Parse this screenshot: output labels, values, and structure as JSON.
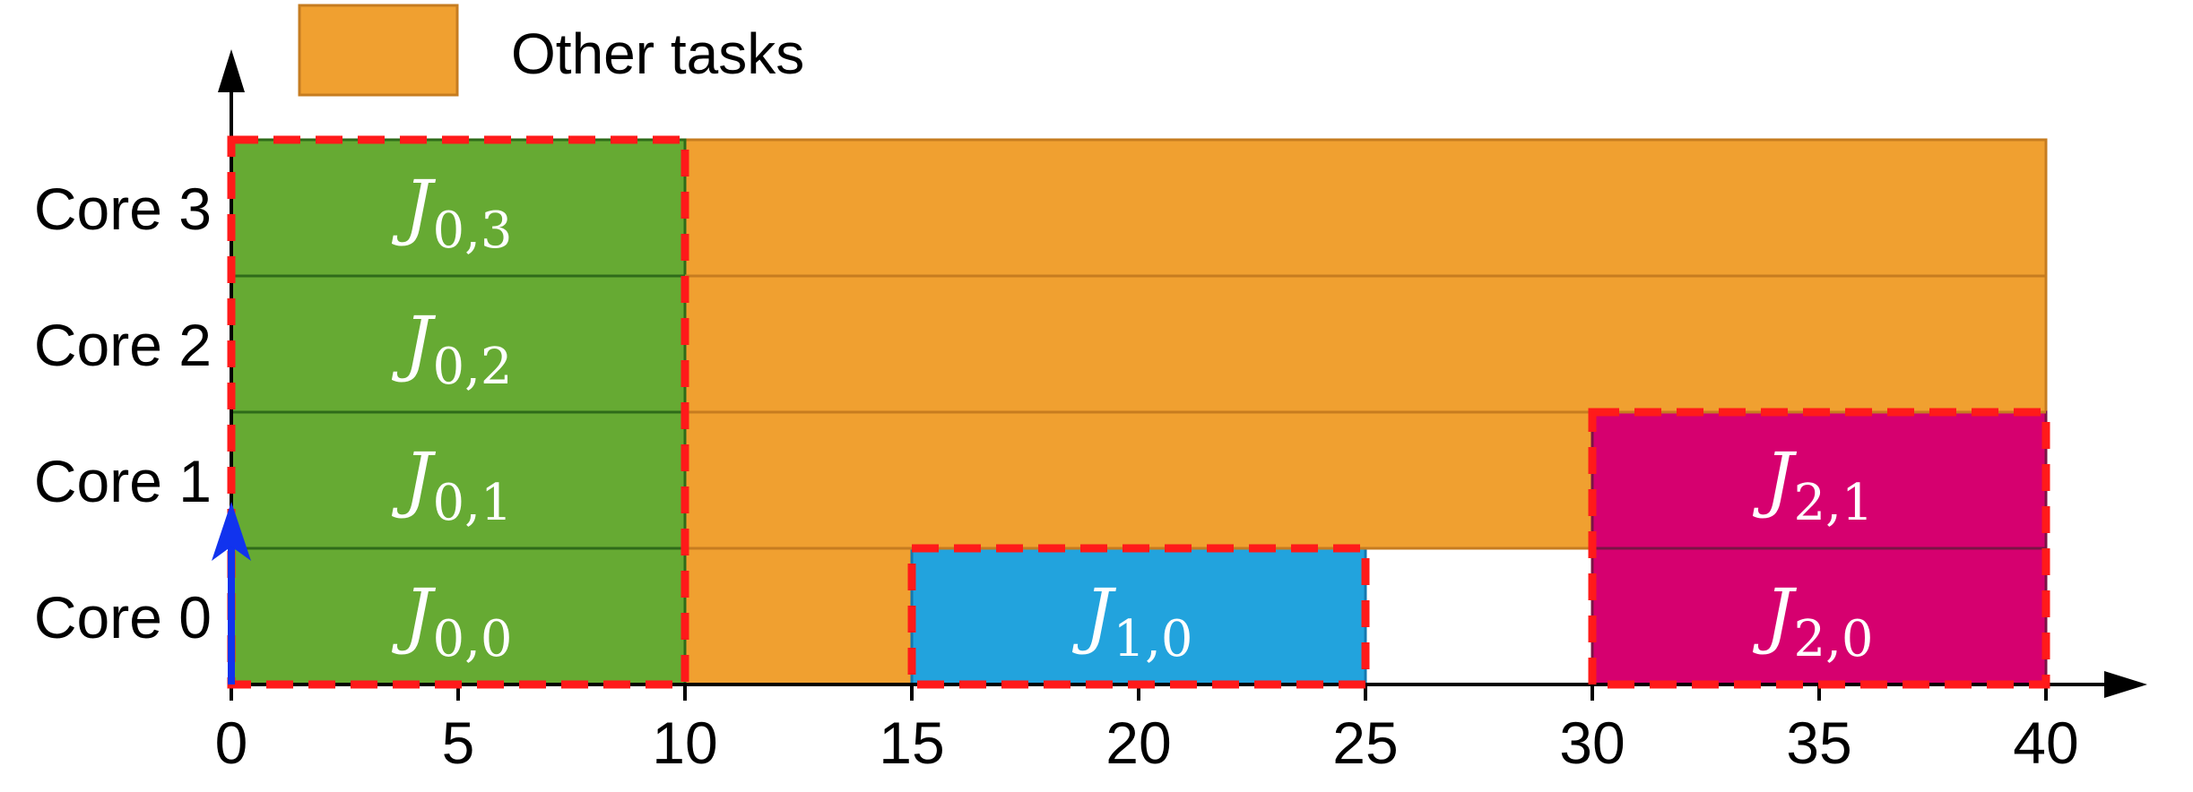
{
  "chart_data": {
    "type": "gantt",
    "x_ticks": [
      0,
      5,
      10,
      15,
      20,
      25,
      30,
      35,
      40
    ],
    "xlim": [
      0,
      43.5
    ],
    "cores": [
      "Core 0",
      "Core 1",
      "Core 2",
      "Core 3"
    ],
    "legend": [
      {
        "label": "Other tasks",
        "color": "#f0a030"
      }
    ],
    "colors": {
      "other": "#f0a030",
      "other_edge": "#c67c20",
      "job0": "#66aa33",
      "job0_edge": "#2f6b1a",
      "job1": "#22a3dd",
      "job1_edge": "#1478b0",
      "job2": "#d6006f",
      "job2_edge": "#7a1445",
      "dashed_outline": "#ff1a1a",
      "release_arrow": "#1133ee"
    },
    "other_tasks": [
      {
        "core": 3,
        "start": 10,
        "end": 40
      },
      {
        "core": 2,
        "start": 10,
        "end": 40
      },
      {
        "core": 1,
        "start": 10,
        "end": 30
      },
      {
        "core": 0,
        "start": 10,
        "end": 15
      }
    ],
    "jobs": [
      {
        "id": "job0",
        "start": 0,
        "end": 10,
        "cores": [
          {
            "core": 3,
            "label": "J",
            "sub": "0,3"
          },
          {
            "core": 2,
            "label": "J",
            "sub": "0,2"
          },
          {
            "core": 1,
            "label": "J",
            "sub": "0,1"
          },
          {
            "core": 0,
            "label": "J",
            "sub": "0,0"
          }
        ]
      },
      {
        "id": "job1",
        "start": 15,
        "end": 25,
        "cores": [
          {
            "core": 0,
            "label": "J",
            "sub": "1,0"
          }
        ]
      },
      {
        "id": "job2",
        "start": 30,
        "end": 40,
        "cores": [
          {
            "core": 1,
            "label": "J",
            "sub": "2,1"
          },
          {
            "core": 0,
            "label": "J",
            "sub": "2,0"
          }
        ]
      }
    ],
    "release_arrows": [
      {
        "time": 0,
        "core": 0
      }
    ]
  }
}
